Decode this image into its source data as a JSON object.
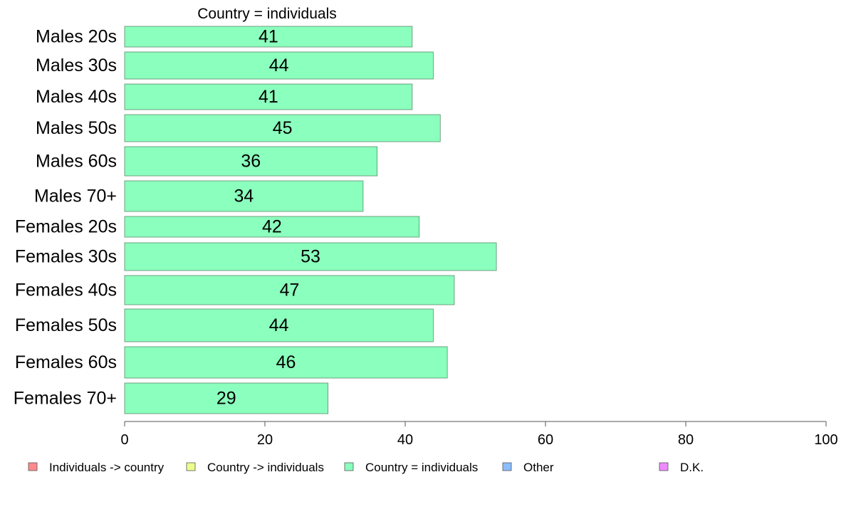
{
  "chart_data": {
    "type": "bar",
    "orientation": "horizontal",
    "title": "Country = individuals",
    "categories": [
      "Males 20s",
      "Males 30s",
      "Males 40s",
      "Males 50s",
      "Males 60s",
      "Males 70+",
      "Females 20s",
      "Females 30s",
      "Females 40s",
      "Females 50s",
      "Females 60s",
      "Females 70+"
    ],
    "series": [
      {
        "name": "Country = individuals",
        "color": "#8bffbd",
        "values": [
          41,
          44,
          41,
          45,
          36,
          34,
          42,
          53,
          47,
          44,
          46,
          29
        ]
      }
    ],
    "data_labels": [
      "41",
      "44",
      "41",
      "45",
      "36",
      "34",
      "42",
      "53",
      "47",
      "44",
      "46",
      "29"
    ],
    "xlim": [
      0,
      100
    ],
    "xticks": [
      0,
      20,
      40,
      60,
      80,
      100
    ],
    "xtick_labels": [
      "0",
      "20",
      "40",
      "60",
      "80",
      "100"
    ],
    "grid": false,
    "legend_position": "bottom",
    "legend": [
      {
        "label": "Individuals -> country",
        "color": "#ff8b8b"
      },
      {
        "label": "Country -> individuals",
        "color": "#eeff8b"
      },
      {
        "label": "Country = individuals",
        "color": "#8bffbd"
      },
      {
        "label": "Other",
        "color": "#8bbdff"
      },
      {
        "label": "D.K.",
        "color": "#ee8bff"
      }
    ]
  }
}
